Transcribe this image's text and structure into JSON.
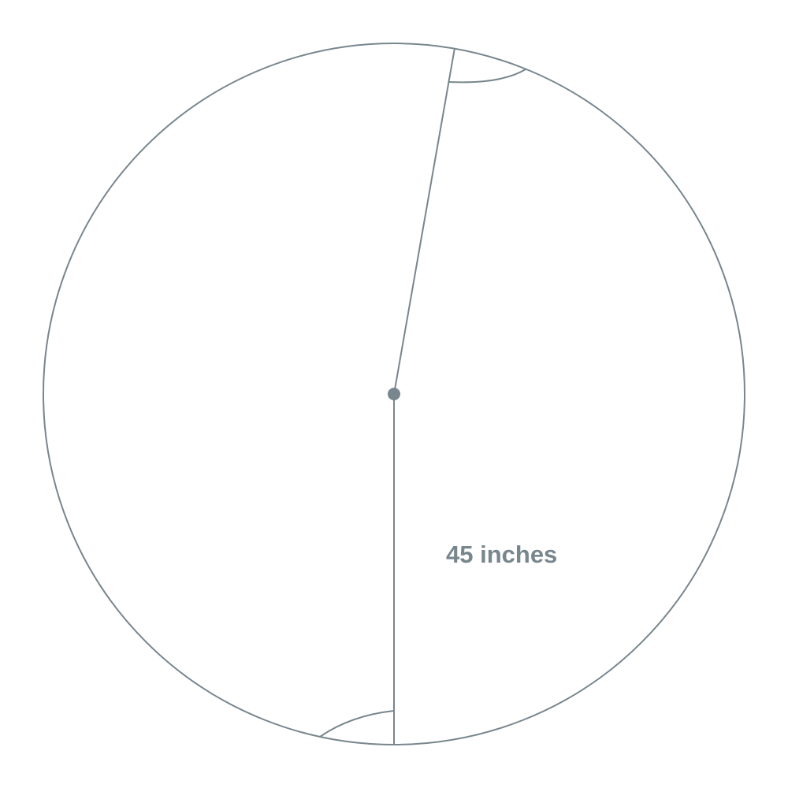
{
  "diagram": {
    "radius_label": "45 inches",
    "line_color": "#78868d",
    "background_color": "#ffffff"
  }
}
